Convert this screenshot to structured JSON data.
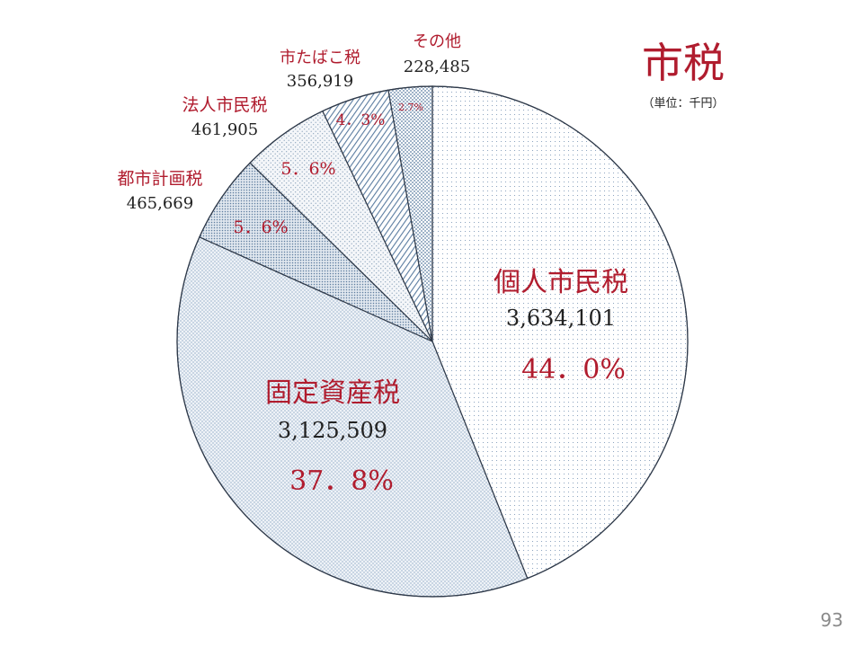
{
  "page": {
    "number": "93"
  },
  "chart_data": {
    "type": "pie",
    "title": "市税",
    "unit_note": "（単位：千円）",
    "start": "12 o'clock, clockwise",
    "slices": [
      {
        "label": "個人市民税",
        "value": 3634101,
        "value_text": "3,634,101",
        "percent_text": "44．0%",
        "pattern": "dots"
      },
      {
        "label": "固定資産税",
        "value": 3125509,
        "value_text": "3,125,509",
        "percent_text": "37．8%",
        "pattern": "dense-dots"
      },
      {
        "label": "都市計画税",
        "value": 465669,
        "value_text": "465,669",
        "percent_text": "5．6%",
        "pattern": "dark-dots"
      },
      {
        "label": "法人市民税",
        "value": 461905,
        "value_text": "461,905",
        "percent_text": "5．6%",
        "pattern": "light-dots"
      },
      {
        "label": "市たばこ税",
        "value": 356919,
        "value_text": "356,919",
        "percent_text": "4．3%",
        "pattern": "diagonal-hatch"
      },
      {
        "label": "その他",
        "value": 228485,
        "value_text": "228,485",
        "percent_text": "2.7%",
        "pattern": "checker"
      }
    ],
    "colors": {
      "label": "#b01c2e",
      "value": "#222222",
      "outline": "#2f3a4a",
      "pattern": "#5a7ca0"
    }
  }
}
